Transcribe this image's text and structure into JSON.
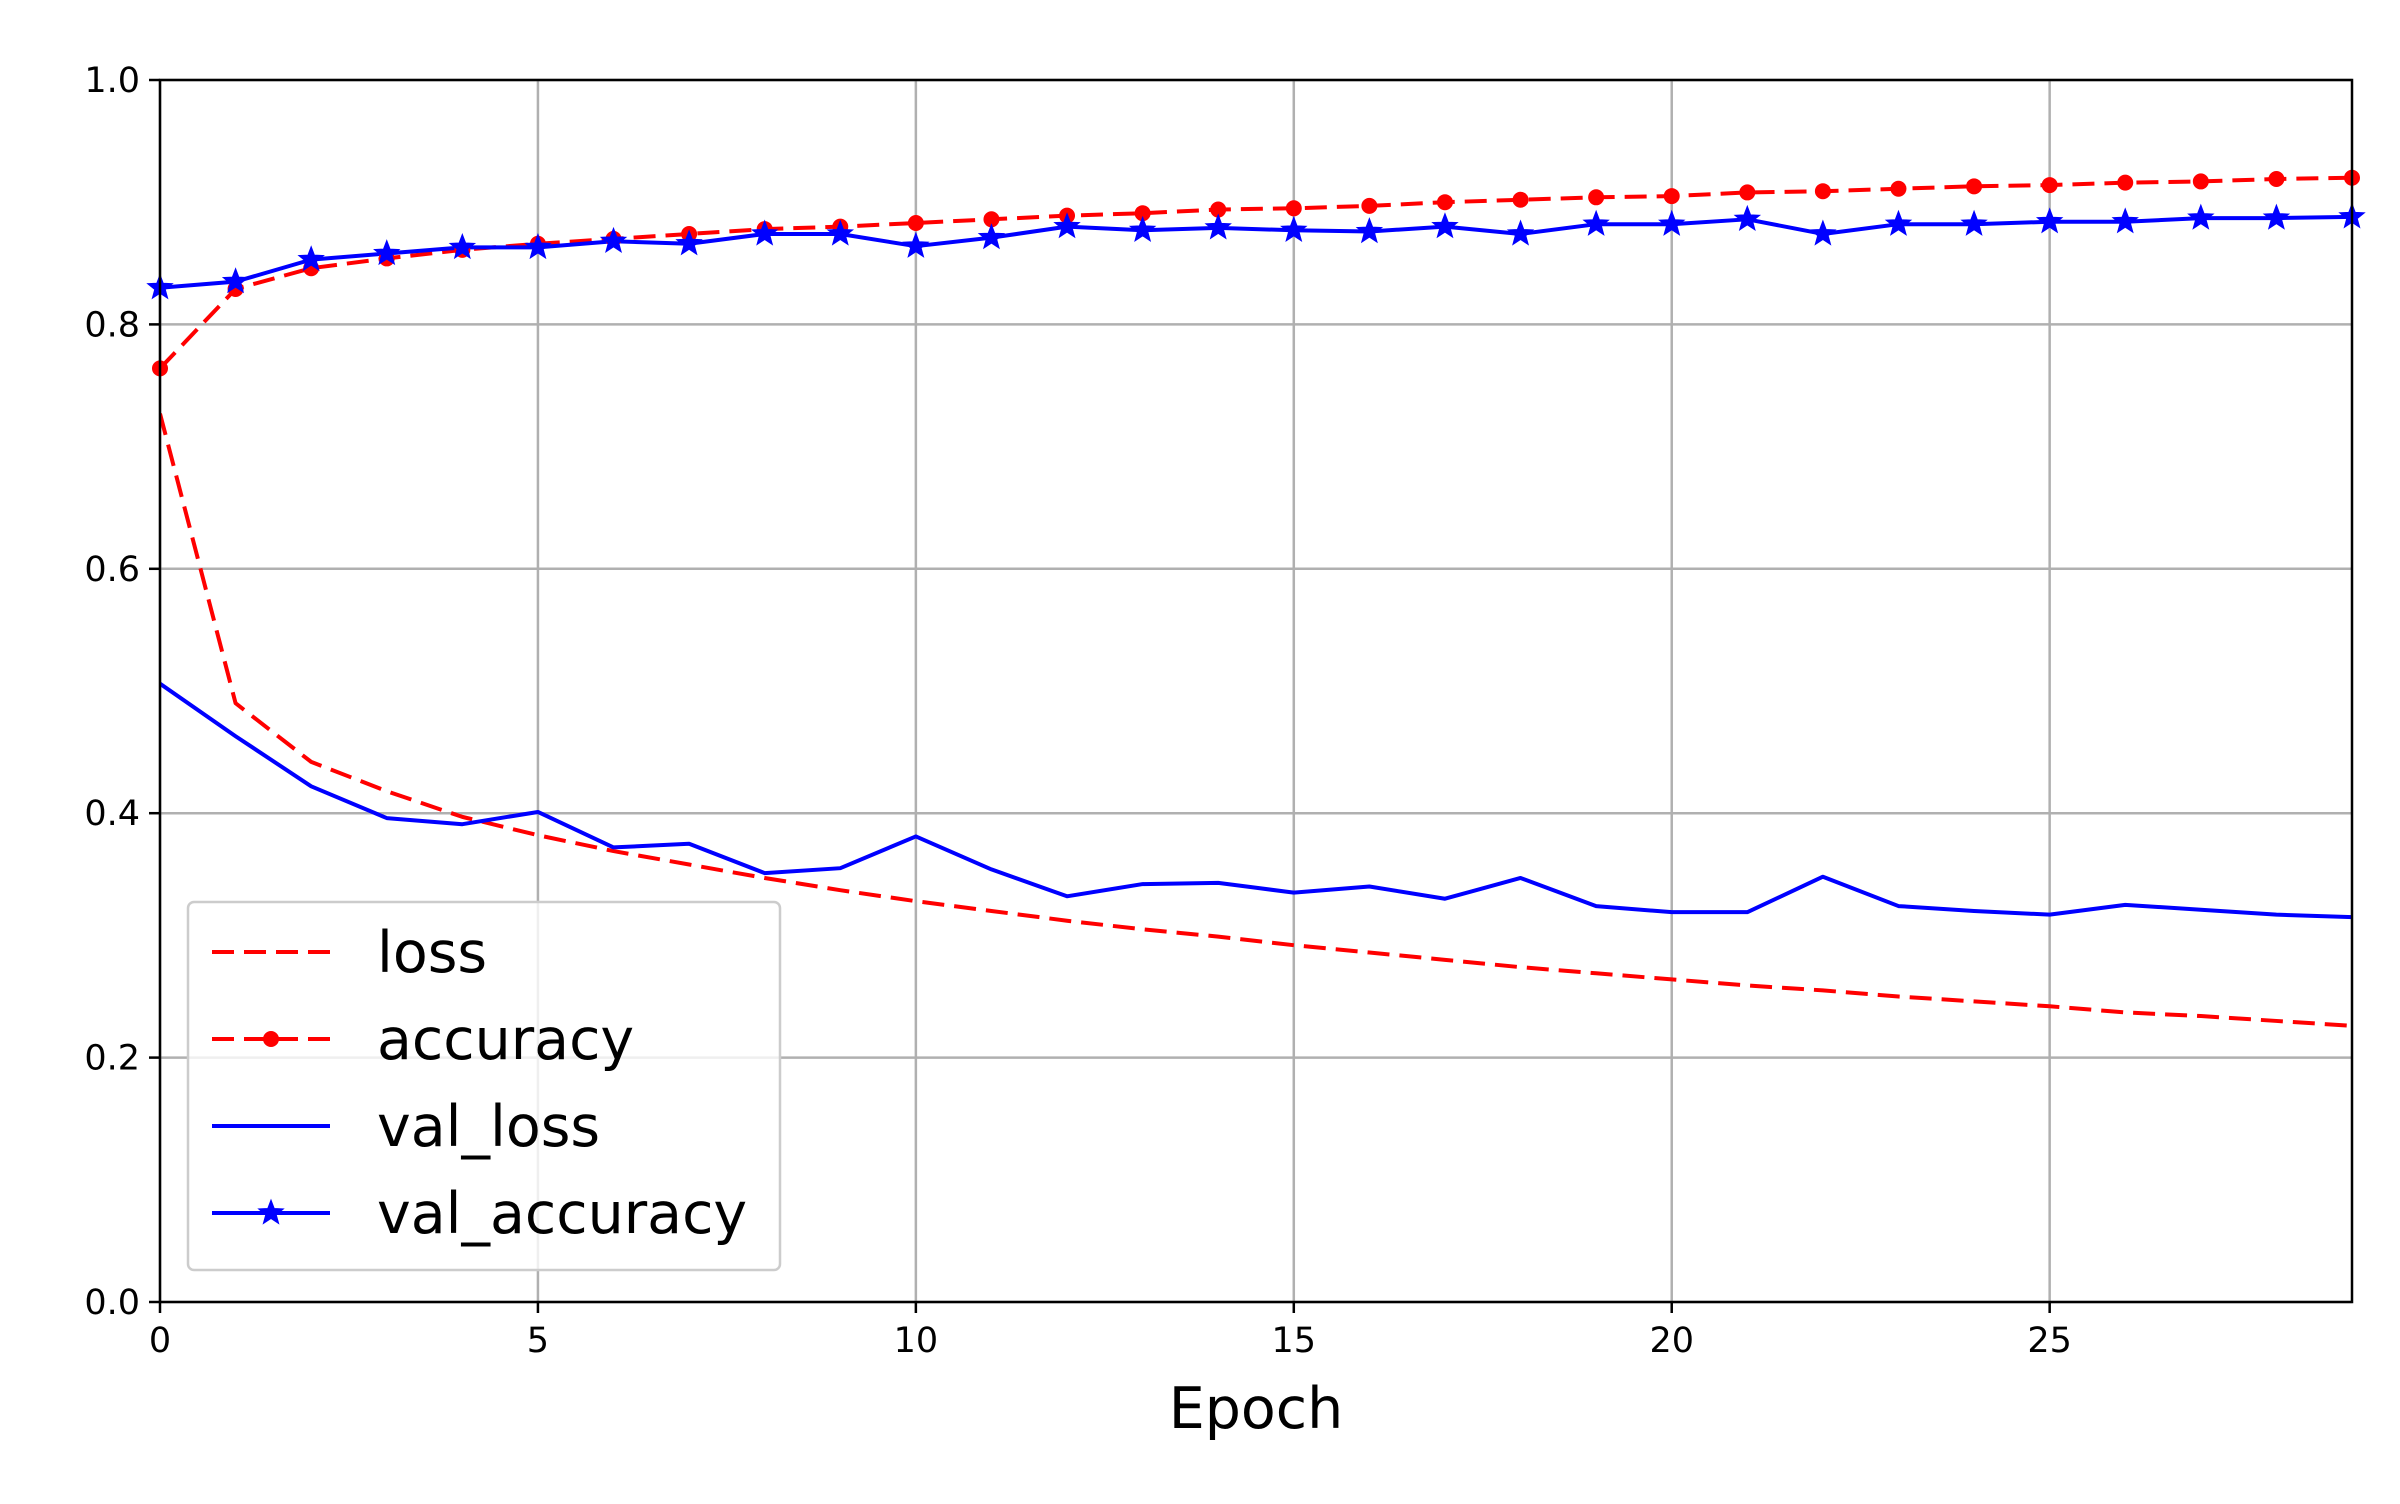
{
  "chart_data": {
    "type": "line",
    "title": "",
    "xlabel": "Epoch",
    "ylabel": "",
    "xlim": [
      0,
      29
    ],
    "ylim": [
      0.0,
      1.0
    ],
    "xticks": [
      0,
      5,
      10,
      15,
      20,
      25
    ],
    "xtick_labels": [
      "0",
      "5",
      "10",
      "15",
      "20",
      "25"
    ],
    "yticks": [
      0.0,
      0.2,
      0.4,
      0.6,
      0.8,
      1.0
    ],
    "ytick_labels": [
      "0.0",
      "0.2",
      "0.4",
      "0.6",
      "0.8",
      "1.0"
    ],
    "grid": true,
    "legend_position": "lower-left",
    "x": [
      0,
      1,
      2,
      3,
      4,
      5,
      6,
      7,
      8,
      9,
      10,
      11,
      12,
      13,
      14,
      15,
      16,
      17,
      18,
      19,
      20,
      21,
      22,
      23,
      24,
      25,
      26,
      27,
      28,
      29
    ],
    "series": [
      {
        "name": "loss",
        "color": "#ff0000",
        "line_style": "dashed",
        "marker": "none",
        "values": [
          0.727,
          0.49,
          0.442,
          0.418,
          0.397,
          0.382,
          0.369,
          0.358,
          0.347,
          0.337,
          0.328,
          0.32,
          0.312,
          0.305,
          0.299,
          0.292,
          0.286,
          0.28,
          0.274,
          0.269,
          0.264,
          0.259,
          0.255,
          0.25,
          0.246,
          0.242,
          0.237,
          0.234,
          0.23,
          0.226
        ]
      },
      {
        "name": "accuracy",
        "color": "#ff0000",
        "line_style": "dashed",
        "marker": "circle",
        "values": [
          0.764,
          0.829,
          0.846,
          0.854,
          0.861,
          0.866,
          0.87,
          0.874,
          0.878,
          0.88,
          0.883,
          0.886,
          0.889,
          0.891,
          0.894,
          0.895,
          0.897,
          0.9,
          0.902,
          0.904,
          0.905,
          0.908,
          0.909,
          0.911,
          0.913,
          0.914,
          0.916,
          0.917,
          0.919,
          0.92
        ]
      },
      {
        "name": "val_loss",
        "color": "#0000ff",
        "line_style": "solid",
        "marker": "none",
        "values": [
          0.506,
          0.463,
          0.422,
          0.396,
          0.391,
          0.401,
          0.372,
          0.375,
          0.351,
          0.355,
          0.381,
          0.354,
          0.332,
          0.342,
          0.343,
          0.335,
          0.34,
          0.33,
          0.347,
          0.324,
          0.319,
          0.319,
          0.348,
          0.324,
          0.32,
          0.317,
          0.325,
          0.321,
          0.317,
          0.315
        ]
      },
      {
        "name": "val_accuracy",
        "color": "#0000ff",
        "line_style": "solid",
        "marker": "star",
        "values": [
          0.83,
          0.835,
          0.853,
          0.858,
          0.863,
          0.863,
          0.868,
          0.866,
          0.874,
          0.874,
          0.864,
          0.871,
          0.88,
          0.877,
          0.879,
          0.877,
          0.876,
          0.88,
          0.874,
          0.882,
          0.882,
          0.886,
          0.874,
          0.882,
          0.882,
          0.884,
          0.884,
          0.887,
          0.887,
          0.888
        ]
      }
    ]
  }
}
